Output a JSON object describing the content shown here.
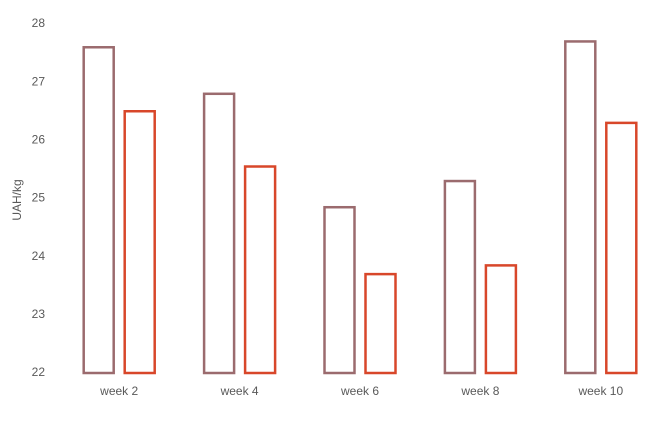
{
  "chart_data": {
    "type": "bar",
    "y_label": "UAH/kg",
    "categories": [
      "week 2",
      "week 4",
      "week 6",
      "week 8",
      "week 10"
    ],
    "series": [
      {
        "color": "#9b6b6e",
        "values": [
          27.6,
          26.8,
          24.85,
          25.3,
          27.7
        ]
      },
      {
        "color": "#d8472a",
        "values": [
          26.5,
          25.55,
          23.7,
          23.85,
          26.3
        ]
      }
    ],
    "ylim": [
      22,
      28
    ],
    "yticks": [
      22,
      23,
      24,
      25,
      26,
      27,
      28
    ],
    "grid": false
  }
}
